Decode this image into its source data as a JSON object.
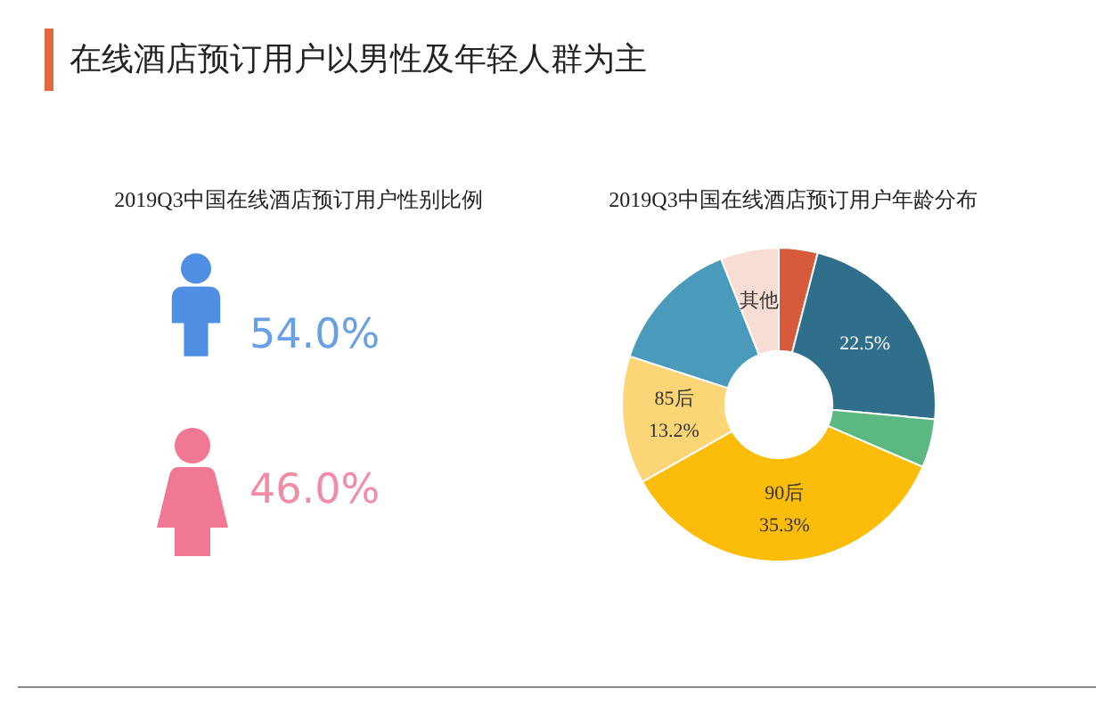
{
  "chart_data": [
    {
      "type": "other",
      "title": "在线酒店预订用户以男性及年轻人群为主",
      "subtitle": "2019Q3中国在线酒店预订用户性别比例",
      "categories": [
        null,
        null
      ],
      "values": [
        54.0,
        46.0
      ],
      "value_labels": [
        "54.0%",
        "46.0%"
      ],
      "colors": [
        "#4f8fe3",
        "#f17892"
      ]
    },
    {
      "type": "donut",
      "title": "2019Q3中国在线酒店预订用户年龄分布",
      "categories": [
        null,
        null,
        null,
        "90后",
        "85后",
        null,
        "其他"
      ],
      "values": [
        4,
        22.5,
        5,
        35.3,
        13.2,
        14,
        6
      ],
      "value_labels": [
        null,
        "22.5%",
        null,
        "35.3%",
        "13.2%",
        null,
        null
      ],
      "colors": [
        "#d85a3c",
        "#2f6f8c",
        "#5cb882",
        "#fbbc0a",
        "#fbd576",
        "#4a9abb",
        "#f7ddd3"
      ]
    }
  ]
}
